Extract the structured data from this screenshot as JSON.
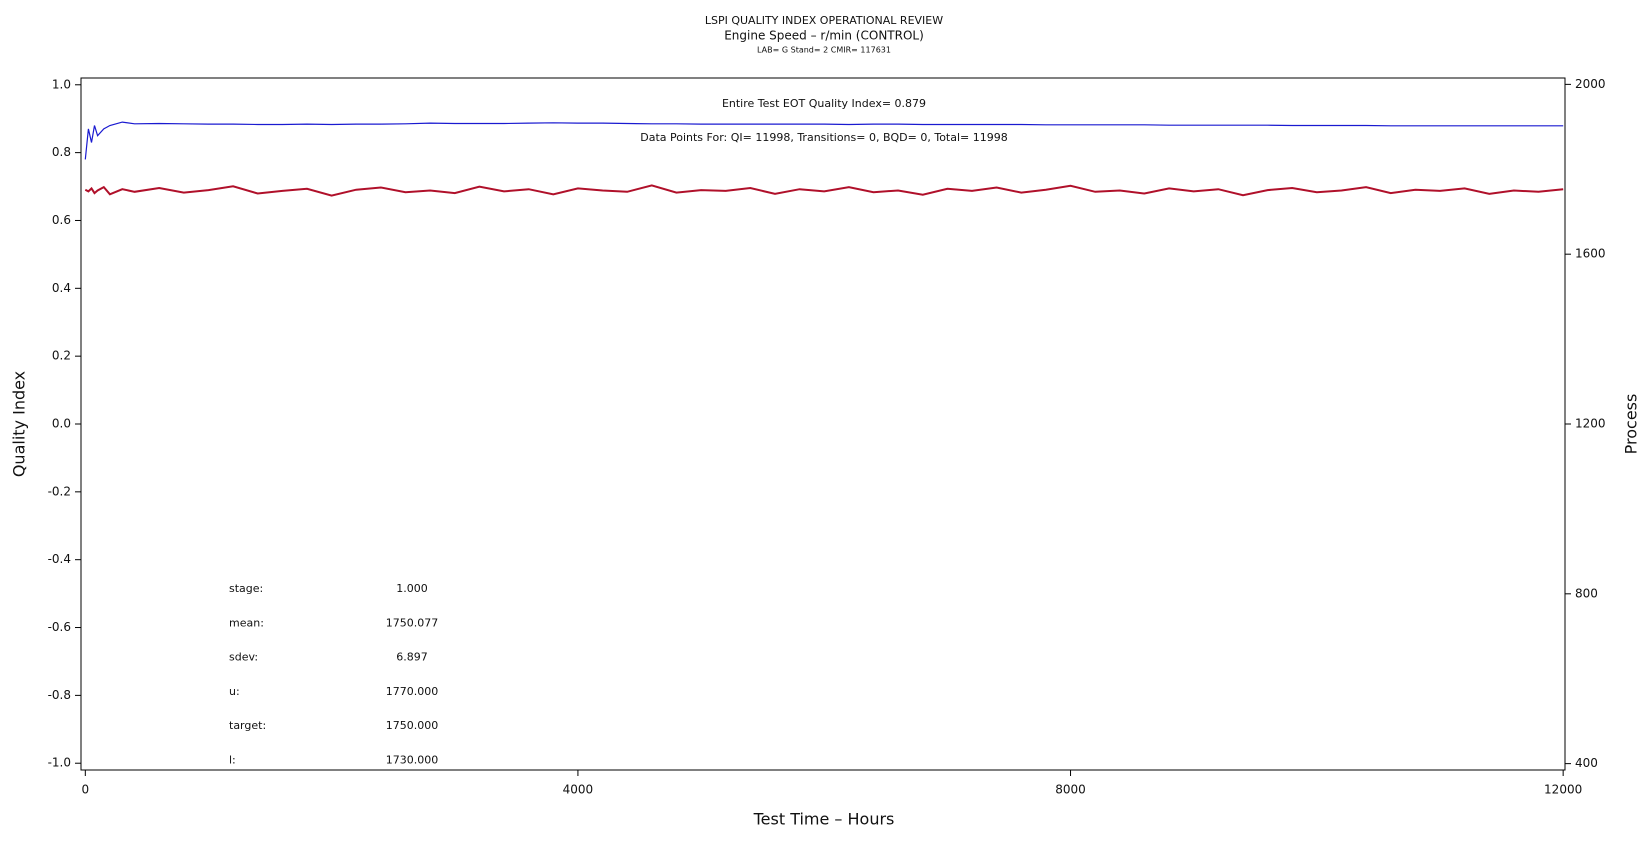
{
  "chart_data": {
    "type": "line",
    "title": "LSPI QUALITY INDEX OPERATIONAL REVIEW",
    "subtitle": "Engine Speed – r/min (CONTROL)",
    "subsubtitle": "LAB= G Stand= 2 CMIR= 117631",
    "xlabel": "Test Time – Hours",
    "ylabel": "Quality Index",
    "y2label": "Process",
    "annotations": [
      "Entire Test EOT Quality Index=  0.879",
      "Data Points For: QI= 11998, Transitions=     0, BQD=     0, Total= 11998"
    ],
    "stats": [
      {
        "label": "stage:",
        "value": "1.000"
      },
      {
        "label": "mean:",
        "value": "1750.077"
      },
      {
        "label": "sdev:",
        "value": "6.897"
      },
      {
        "label": "u:",
        "value": "1770.000"
      },
      {
        "label": "target:",
        "value": "1750.000"
      },
      {
        "label": "l:",
        "value": "1730.000"
      }
    ],
    "x": [
      0,
      25,
      50,
      75,
      100,
      150,
      200,
      300,
      400,
      600,
      800,
      1000,
      1200,
      1400,
      1600,
      1800,
      2000,
      2200,
      2400,
      2600,
      2800,
      3000,
      3200,
      3400,
      3600,
      3800,
      4000,
      4200,
      4400,
      4600,
      4800,
      5000,
      5200,
      5400,
      5600,
      5800,
      6000,
      6200,
      6400,
      6600,
      6800,
      7000,
      7200,
      7400,
      7600,
      7800,
      8000,
      8200,
      8400,
      8600,
      8800,
      9000,
      9200,
      9400,
      9600,
      9800,
      10000,
      10200,
      10400,
      10600,
      10800,
      11000,
      11200,
      11400,
      11600,
      11800,
      12000
    ],
    "series": [
      {
        "color": "#1a1ad0",
        "values": [
          0.78,
          0.87,
          0.83,
          0.88,
          0.85,
          0.87,
          0.88,
          0.89,
          0.885,
          0.886,
          0.885,
          0.884,
          0.884,
          0.883,
          0.883,
          0.884,
          0.883,
          0.884,
          0.884,
          0.885,
          0.887,
          0.886,
          0.886,
          0.886,
          0.887,
          0.888,
          0.887,
          0.887,
          0.886,
          0.885,
          0.885,
          0.884,
          0.884,
          0.884,
          0.884,
          0.884,
          0.884,
          0.883,
          0.884,
          0.884,
          0.883,
          0.883,
          0.883,
          0.883,
          0.883,
          0.882,
          0.882,
          0.882,
          0.882,
          0.882,
          0.881,
          0.881,
          0.881,
          0.881,
          0.881,
          0.88,
          0.88,
          0.88,
          0.88,
          0.879,
          0.879,
          0.879,
          0.879,
          0.879,
          0.879,
          0.879,
          0.879
        ]
      },
      {
        "color": "#b0102a",
        "axis": "y2",
        "values": [
          1752,
          1748,
          1755,
          1744,
          1750,
          1758,
          1741,
          1753,
          1747,
          1756,
          1745,
          1751,
          1760,
          1743,
          1749,
          1754,
          1738,
          1752,
          1757,
          1746,
          1750,
          1744,
          1759,
          1748,
          1753,
          1741,
          1755,
          1750,
          1747,
          1762,
          1745,
          1751,
          1749,
          1756,
          1742,
          1753,
          1748,
          1758,
          1746,
          1750,
          1740,
          1754,
          1749,
          1757,
          1745,
          1752,
          1761,
          1747,
          1750,
          1743,
          1755,
          1748,
          1753,
          1739,
          1751,
          1756,
          1746,
          1750,
          1758,
          1744,
          1752,
          1749,
          1755,
          1742,
          1750,
          1747,
          1753
        ]
      }
    ],
    "xlim": [
      -35,
      12015
    ],
    "xticks": [
      0,
      4000,
      8000,
      12000
    ],
    "ylim": [
      -1.02,
      1.02
    ],
    "yticks": [
      {
        "value": -1,
        "label": "-1.0"
      },
      -0.8,
      -0.6,
      -0.4,
      -0.2,
      {
        "value": 0,
        "label": "0.0"
      },
      0.2,
      0.4,
      0.6,
      0.8,
      {
        "value": 1,
        "label": "1.0"
      }
    ],
    "y2lim": [
      385,
      2015
    ],
    "y2ticks": [
      400,
      800,
      1200,
      1600,
      2000
    ]
  }
}
